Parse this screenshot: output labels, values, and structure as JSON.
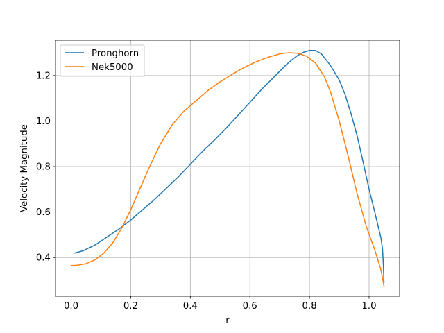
{
  "chart_data": {
    "type": "line",
    "title": "",
    "xlabel": "r",
    "ylabel": "Velocity Magnitude",
    "xlim": [
      -0.0525,
      1.1025
    ],
    "ylim": [
      0.23,
      1.355
    ],
    "xticks": [
      0.0,
      0.2,
      0.4,
      0.6,
      0.8,
      1.0
    ],
    "xtick_labels": [
      "0.0",
      "0.2",
      "0.4",
      "0.6",
      "0.8",
      "1.0"
    ],
    "yticks": [
      0.4,
      0.6,
      0.8,
      1.0,
      1.2
    ],
    "ytick_labels": [
      "0.4",
      "0.6",
      "0.8",
      "1.0",
      "1.2"
    ],
    "grid": true,
    "legend_position": "top-left",
    "series": [
      {
        "name": "Pronghorn",
        "color": "#1f77b4",
        "x": [
          0.012,
          0.04,
          0.08,
          0.12,
          0.16,
          0.2,
          0.24,
          0.28,
          0.32,
          0.36,
          0.4,
          0.44,
          0.48,
          0.52,
          0.56,
          0.6,
          0.64,
          0.68,
          0.72,
          0.74,
          0.76,
          0.78,
          0.8,
          0.82,
          0.84,
          0.87,
          0.9,
          0.92,
          0.94,
          0.96,
          0.98,
          1.0,
          1.02,
          1.04,
          1.045,
          1.048,
          1.05
        ],
        "y": [
          0.42,
          0.43,
          0.455,
          0.49,
          0.525,
          0.565,
          0.61,
          0.655,
          0.705,
          0.755,
          0.81,
          0.865,
          0.915,
          0.968,
          1.025,
          1.082,
          1.14,
          1.192,
          1.245,
          1.268,
          1.288,
          1.302,
          1.31,
          1.31,
          1.295,
          1.245,
          1.18,
          1.115,
          1.03,
          0.935,
          0.82,
          0.7,
          0.595,
          0.485,
          0.44,
          0.37,
          0.29
        ]
      },
      {
        "name": "Nek5000",
        "color": "#ff7f0e",
        "x": [
          0.0,
          0.02,
          0.05,
          0.08,
          0.11,
          0.14,
          0.17,
          0.2,
          0.23,
          0.26,
          0.3,
          0.34,
          0.38,
          0.42,
          0.46,
          0.5,
          0.54,
          0.58,
          0.62,
          0.66,
          0.7,
          0.73,
          0.76,
          0.79,
          0.82,
          0.85,
          0.87,
          0.9,
          0.93,
          0.96,
          0.99,
          1.02,
          1.04,
          1.05
        ],
        "y": [
          0.365,
          0.366,
          0.373,
          0.39,
          0.42,
          0.465,
          0.53,
          0.61,
          0.7,
          0.79,
          0.9,
          0.985,
          1.045,
          1.09,
          1.135,
          1.172,
          1.205,
          1.235,
          1.26,
          1.28,
          1.295,
          1.3,
          1.298,
          1.285,
          1.255,
          1.195,
          1.13,
          1.0,
          0.845,
          0.68,
          0.54,
          0.43,
          0.345,
          0.275
        ]
      }
    ]
  }
}
